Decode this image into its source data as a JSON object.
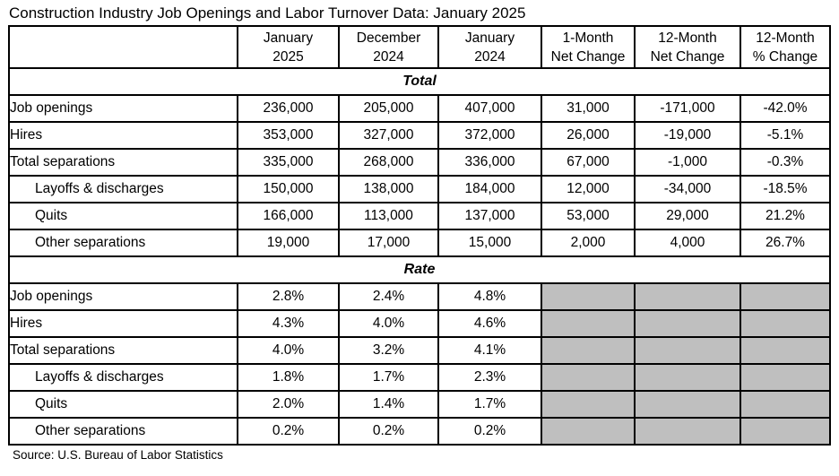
{
  "colors": {
    "border": "#000000",
    "shaded_cell": "#bfbfbf",
    "background": "#ffffff",
    "text": "#000000"
  },
  "chart_data": {
    "type": "table",
    "title": "Construction Industry Job Openings and Labor Turnover Data: January 2025",
    "column_headers": [
      "",
      "January\n2025",
      "December\n2024",
      "January\n2024",
      "1-Month\nNet Change",
      "12-Month\nNet Change",
      "12-Month\n% Change"
    ],
    "sections": [
      {
        "label": "Total",
        "rows": [
          {
            "label": "Job openings",
            "indent": 0,
            "values": [
              "236,000",
              "205,000",
              "407,000",
              "31,000",
              "-171,000",
              "-42.0%"
            ]
          },
          {
            "label": "Hires",
            "indent": 0,
            "values": [
              "353,000",
              "327,000",
              "372,000",
              "26,000",
              "-19,000",
              "-5.1%"
            ]
          },
          {
            "label": "Total separations",
            "indent": 0,
            "values": [
              "335,000",
              "268,000",
              "336,000",
              "67,000",
              "-1,000",
              "-0.3%"
            ]
          },
          {
            "label": "Layoffs & discharges",
            "indent": 1,
            "values": [
              "150,000",
              "138,000",
              "184,000",
              "12,000",
              "-34,000",
              "-18.5%"
            ]
          },
          {
            "label": "Quits",
            "indent": 1,
            "values": [
              "166,000",
              "113,000",
              "137,000",
              "53,000",
              "29,000",
              "21.2%"
            ]
          },
          {
            "label": "Other separations",
            "indent": 1,
            "values": [
              "19,000",
              "17,000",
              "15,000",
              "2,000",
              "4,000",
              "26.7%"
            ]
          }
        ]
      },
      {
        "label": "Rate",
        "rows": [
          {
            "label": "Job openings",
            "indent": 0,
            "values": [
              "2.8%",
              "2.4%",
              "4.8%",
              null,
              null,
              null
            ]
          },
          {
            "label": "Hires",
            "indent": 0,
            "values": [
              "4.3%",
              "4.0%",
              "4.6%",
              null,
              null,
              null
            ]
          },
          {
            "label": "Total separations",
            "indent": 0,
            "values": [
              "4.0%",
              "3.2%",
              "4.1%",
              null,
              null,
              null
            ]
          },
          {
            "label": "Layoffs & discharges",
            "indent": 1,
            "values": [
              "1.8%",
              "1.7%",
              "2.3%",
              null,
              null,
              null
            ]
          },
          {
            "label": "Quits",
            "indent": 1,
            "values": [
              "2.0%",
              "1.4%",
              "1.7%",
              null,
              null,
              null
            ]
          },
          {
            "label": "Other separations",
            "indent": 1,
            "values": [
              "0.2%",
              "0.2%",
              "0.2%",
              null,
              null,
              null
            ]
          }
        ]
      }
    ],
    "source": "Source: U.S. Bureau of Labor Statistics"
  }
}
